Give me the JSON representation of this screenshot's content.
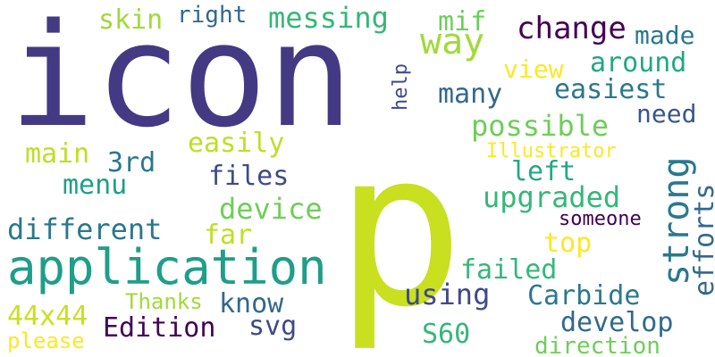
{
  "words": [
    {
      "text": "icon",
      "color": "#443a83"
    },
    {
      "text": "p",
      "color": "#c8e020"
    },
    {
      "text": "application",
      "color": "#1f9e89"
    },
    {
      "text": "strong",
      "color": "#2a788e"
    },
    {
      "text": "way",
      "color": "#a0da39"
    },
    {
      "text": "change",
      "color": "#440154"
    },
    {
      "text": "messing",
      "color": "#35b779"
    },
    {
      "text": "mif",
      "color": "#6ece58"
    },
    {
      "text": "skin",
      "color": "#a0da39"
    },
    {
      "text": "right",
      "color": "#31688e"
    },
    {
      "text": "made",
      "color": "#2a788e"
    },
    {
      "text": "around",
      "color": "#22a884"
    },
    {
      "text": "view",
      "color": "#fde725"
    },
    {
      "text": "easiest",
      "color": "#2a788e"
    },
    {
      "text": "many",
      "color": "#31688e"
    },
    {
      "text": "help",
      "color": "#3e4a89"
    },
    {
      "text": "need",
      "color": "#39568c"
    },
    {
      "text": "possible",
      "color": "#6ece58"
    },
    {
      "text": "easily",
      "color": "#bddf26"
    },
    {
      "text": "main",
      "color": "#bddf26"
    },
    {
      "text": "3rd",
      "color": "#2a788e"
    },
    {
      "text": "Illustrator",
      "color": "#fde725"
    },
    {
      "text": "left",
      "color": "#22a884"
    },
    {
      "text": "files",
      "color": "#3e4a89"
    },
    {
      "text": "menu",
      "color": "#1f9e89"
    },
    {
      "text": "upgraded",
      "color": "#35b779"
    },
    {
      "text": "efforts",
      "color": "#31688e"
    },
    {
      "text": "device",
      "color": "#6ece58"
    },
    {
      "text": "someone",
      "color": "#440154"
    },
    {
      "text": "different",
      "color": "#2a788e"
    },
    {
      "text": "far",
      "color": "#bddf26"
    },
    {
      "text": "top",
      "color": "#fde725"
    },
    {
      "text": "failed",
      "color": "#35b779"
    },
    {
      "text": "using",
      "color": "#3e4a89"
    },
    {
      "text": "Carbide",
      "color": "#2a788e"
    },
    {
      "text": "know",
      "color": "#31688e"
    },
    {
      "text": "Thanks",
      "color": "#a0da39"
    },
    {
      "text": "44x44",
      "color": "#c8e020"
    },
    {
      "text": "Edition",
      "color": "#440154"
    },
    {
      "text": "svg",
      "color": "#3e4a89"
    },
    {
      "text": "develop",
      "color": "#31688e"
    },
    {
      "text": "S60",
      "color": "#35b779"
    },
    {
      "text": "please",
      "color": "#fde725"
    },
    {
      "text": "direction",
      "color": "#6ece58"
    }
  ]
}
